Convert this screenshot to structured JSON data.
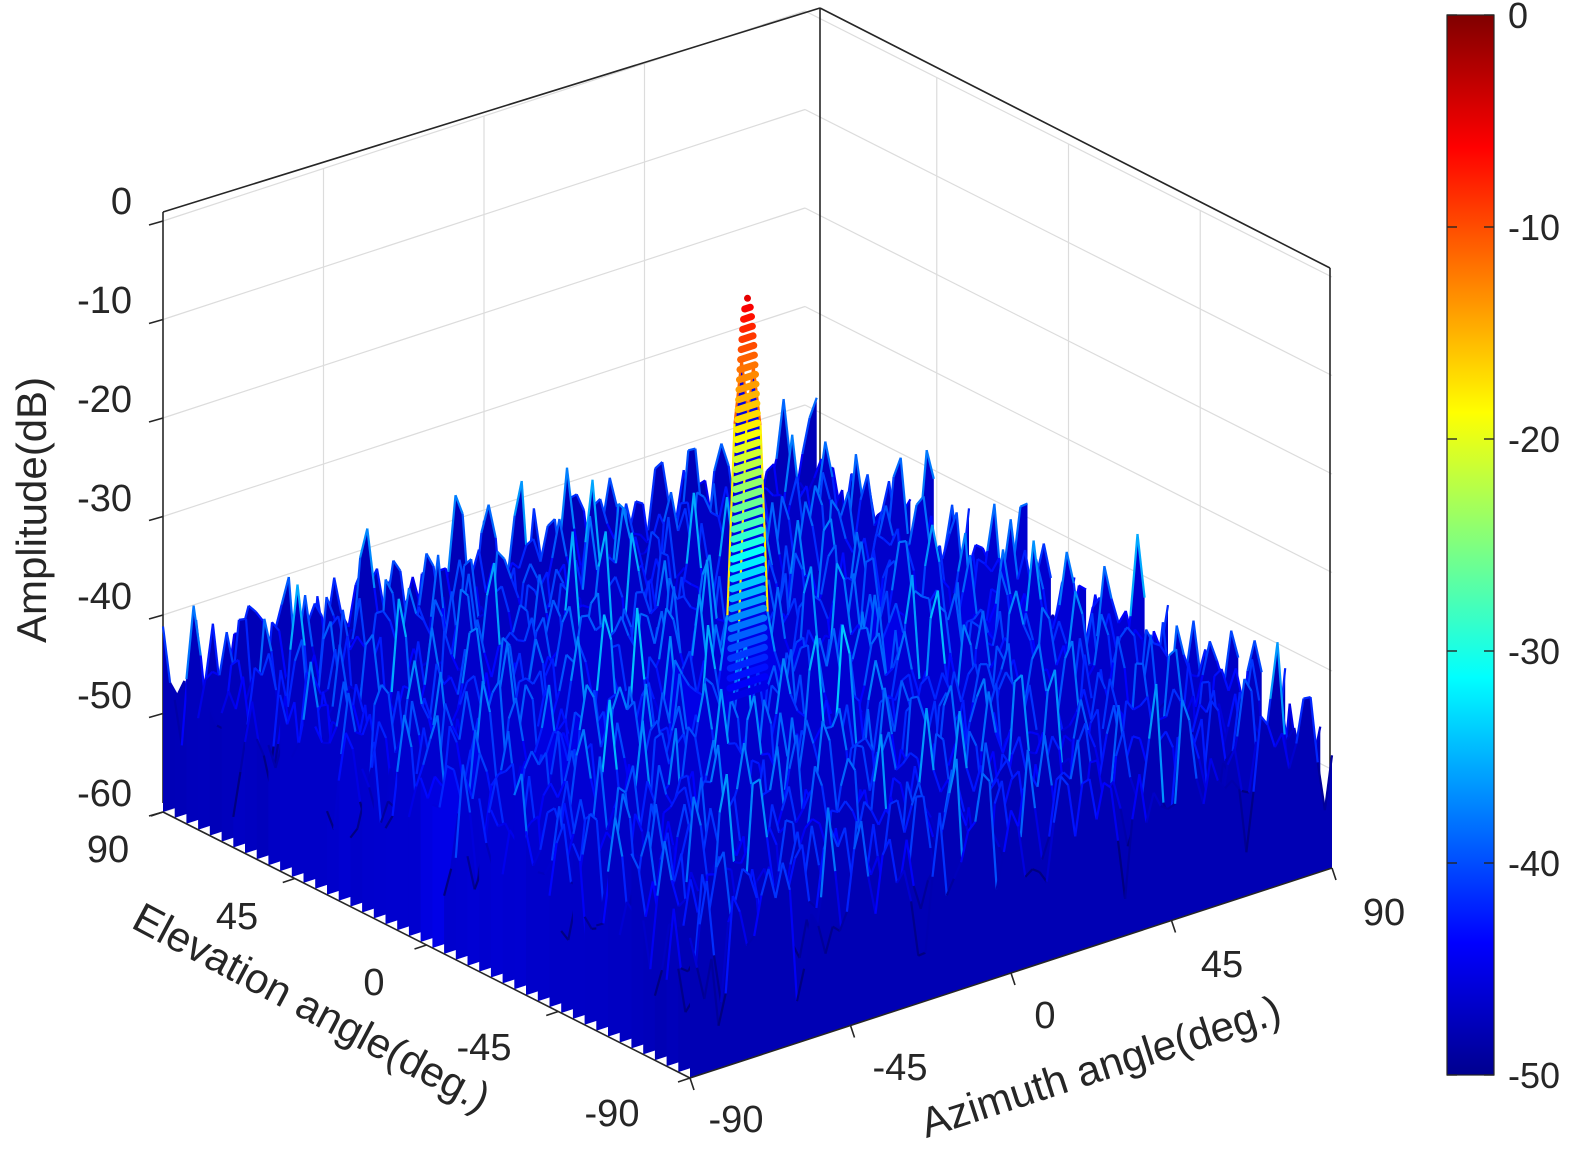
{
  "chart_data": {
    "type": "surface",
    "zlabel": "Amplitude(dB)",
    "xlabel": "Azimuth angle(deg.)",
    "ylabel": "Elevation angle(deg.)",
    "zlim": [
      -60,
      0
    ],
    "xlim": [
      -90,
      90
    ],
    "ylim": [
      -90,
      90
    ],
    "z_ticks": [
      "0",
      "-10",
      "-20",
      "-30",
      "-40",
      "-50",
      "-60"
    ],
    "azimuth_ticks": [
      "-90",
      "-45",
      "0",
      "45",
      "90"
    ],
    "elevation_ticks": [
      "90",
      "45",
      "0",
      "-45",
      "-90"
    ],
    "colorbar": {
      "range": [
        -50,
        0
      ],
      "ticks": [
        "0",
        "-10",
        "-20",
        "-30",
        "-40",
        "-50"
      ],
      "colormap": "jet"
    },
    "main_lobe": {
      "azimuth": 0,
      "elevation": 0,
      "peak_db": -5
    },
    "sidelobe_floor_db": -60,
    "sidelobe_typical_range_db": [
      -50,
      -35
    ],
    "grid": true
  }
}
